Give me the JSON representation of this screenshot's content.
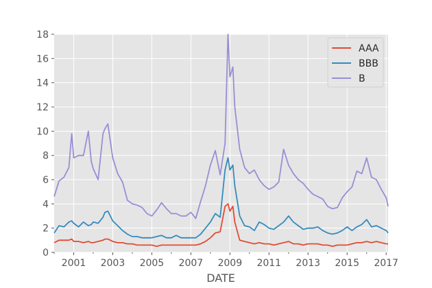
{
  "chart_data": {
    "type": "line",
    "title": "",
    "xlabel": "DATE",
    "ylabel": "",
    "xlim": [
      2000.0,
      2017.1
    ],
    "ylim": [
      0,
      18
    ],
    "x_ticks": [
      "2001",
      "2003",
      "2005",
      "2007",
      "2009",
      "2011",
      "2013",
      "2015",
      "2017"
    ],
    "y_ticks": [
      "0",
      "2",
      "4",
      "6",
      "8",
      "10",
      "12",
      "14",
      "16",
      "18"
    ],
    "grid": true,
    "legend_position": "upper right",
    "x": [
      2000.0,
      2000.25,
      2000.5,
      2000.75,
      2000.9,
      2001.0,
      2001.25,
      2001.5,
      2001.75,
      2001.9,
      2002.0,
      2002.25,
      2002.5,
      2002.6,
      2002.75,
      2003.0,
      2003.25,
      2003.5,
      2003.75,
      2004.0,
      2004.25,
      2004.5,
      2004.75,
      2005.0,
      2005.25,
      2005.5,
      2005.75,
      2006.0,
      2006.25,
      2006.5,
      2006.75,
      2007.0,
      2007.25,
      2007.5,
      2007.75,
      2008.0,
      2008.25,
      2008.5,
      2008.75,
      2008.9,
      2009.0,
      2009.15,
      2009.25,
      2009.5,
      2009.75,
      2010.0,
      2010.25,
      2010.5,
      2010.75,
      2011.0,
      2011.25,
      2011.5,
      2011.75,
      2012.0,
      2012.25,
      2012.5,
      2012.75,
      2013.0,
      2013.25,
      2013.5,
      2013.75,
      2014.0,
      2014.25,
      2014.5,
      2014.75,
      2015.0,
      2015.25,
      2015.5,
      2015.75,
      2016.0,
      2016.25,
      2016.5,
      2016.75,
      2017.0,
      2017.1
    ],
    "series": [
      {
        "name": "AAA",
        "color": "#E24A33",
        "values": [
          0.8,
          1.0,
          1.0,
          1.0,
          1.1,
          0.9,
          0.9,
          0.8,
          0.9,
          0.8,
          0.8,
          0.9,
          1.0,
          1.1,
          1.1,
          0.9,
          0.8,
          0.8,
          0.7,
          0.7,
          0.6,
          0.6,
          0.6,
          0.6,
          0.5,
          0.6,
          0.6,
          0.6,
          0.6,
          0.6,
          0.6,
          0.6,
          0.6,
          0.7,
          0.9,
          1.2,
          1.6,
          1.7,
          3.8,
          4.0,
          3.4,
          3.8,
          2.5,
          1.0,
          0.9,
          0.8,
          0.7,
          0.8,
          0.7,
          0.7,
          0.6,
          0.7,
          0.8,
          0.9,
          0.7,
          0.7,
          0.6,
          0.7,
          0.7,
          0.7,
          0.6,
          0.6,
          0.5,
          0.6,
          0.6,
          0.6,
          0.7,
          0.8,
          0.8,
          0.9,
          0.8,
          0.9,
          0.8,
          0.7,
          0.7
        ]
      },
      {
        "name": "BBB",
        "color": "#348ABD",
        "values": [
          1.6,
          2.2,
          2.1,
          2.5,
          2.6,
          2.4,
          2.1,
          2.5,
          2.2,
          2.3,
          2.5,
          2.4,
          2.9,
          3.3,
          3.4,
          2.6,
          2.2,
          1.8,
          1.5,
          1.3,
          1.3,
          1.2,
          1.2,
          1.2,
          1.3,
          1.4,
          1.2,
          1.2,
          1.4,
          1.2,
          1.2,
          1.2,
          1.2,
          1.5,
          2.0,
          2.5,
          3.2,
          2.9,
          6.8,
          7.8,
          6.8,
          7.2,
          5.5,
          3.0,
          2.2,
          2.1,
          1.8,
          2.5,
          2.3,
          2.0,
          1.9,
          2.2,
          2.5,
          3.0,
          2.5,
          2.2,
          1.9,
          2.0,
          2.0,
          2.1,
          1.8,
          1.6,
          1.5,
          1.6,
          1.8,
          2.1,
          1.8,
          2.1,
          2.3,
          2.7,
          2.1,
          2.2,
          2.0,
          1.8,
          1.6
        ]
      },
      {
        "name": "B",
        "color": "#988ED5",
        "values": [
          4.6,
          5.9,
          6.2,
          7.0,
          9.8,
          7.8,
          8.0,
          8.0,
          10.0,
          7.5,
          6.9,
          6.0,
          9.8,
          10.2,
          10.6,
          7.8,
          6.5,
          5.8,
          4.3,
          4.0,
          3.9,
          3.7,
          3.2,
          3.0,
          3.5,
          4.1,
          3.6,
          3.2,
          3.2,
          3.0,
          3.0,
          3.3,
          2.8,
          4.2,
          5.5,
          7.2,
          8.4,
          6.4,
          9.0,
          18.0,
          14.5,
          15.3,
          12.0,
          8.5,
          7.0,
          6.5,
          6.8,
          6.0,
          5.5,
          5.2,
          5.4,
          5.8,
          8.5,
          7.2,
          6.5,
          6.0,
          5.7,
          5.2,
          4.8,
          4.6,
          4.4,
          3.8,
          3.6,
          3.7,
          4.5,
          5.0,
          5.4,
          6.7,
          6.5,
          7.8,
          6.2,
          6.0,
          5.2,
          4.5,
          3.8
        ]
      }
    ]
  }
}
